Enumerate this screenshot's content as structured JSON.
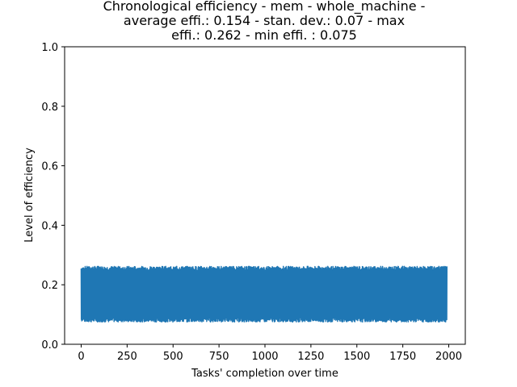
{
  "chart_data": {
    "type": "line",
    "title_lines": [
      "Chronological efficiency - mem - whole_machine -",
      "average effi.: 0.154 - stan. dev.: 0.07 - max",
      "effi.: 0.262 - min effi. : 0.075"
    ],
    "xlabel": "Tasks' completion over time",
    "ylabel": "Level of efficiency",
    "xlim": [
      -90,
      2090
    ],
    "ylim": [
      0.0,
      1.0
    ],
    "xticks": [
      0,
      250,
      500,
      750,
      1000,
      1250,
      1500,
      1750,
      2000
    ],
    "xtick_labels": [
      "0",
      "250",
      "500",
      "750",
      "1000",
      "1250",
      "1500",
      "1750",
      "2000"
    ],
    "yticks": [
      0.0,
      0.2,
      0.4,
      0.6,
      0.8,
      1.0
    ],
    "ytick_labels": [
      "0.0",
      "0.2",
      "0.4",
      "0.6",
      "0.8",
      "1.0"
    ],
    "series": [
      {
        "color": "#1f77b4",
        "x_start": 0,
        "x_end": 1990,
        "n_points": 1991,
        "mean": 0.154,
        "std": 0.07,
        "max": 0.262,
        "min": 0.075
      }
    ],
    "grid": false
  }
}
